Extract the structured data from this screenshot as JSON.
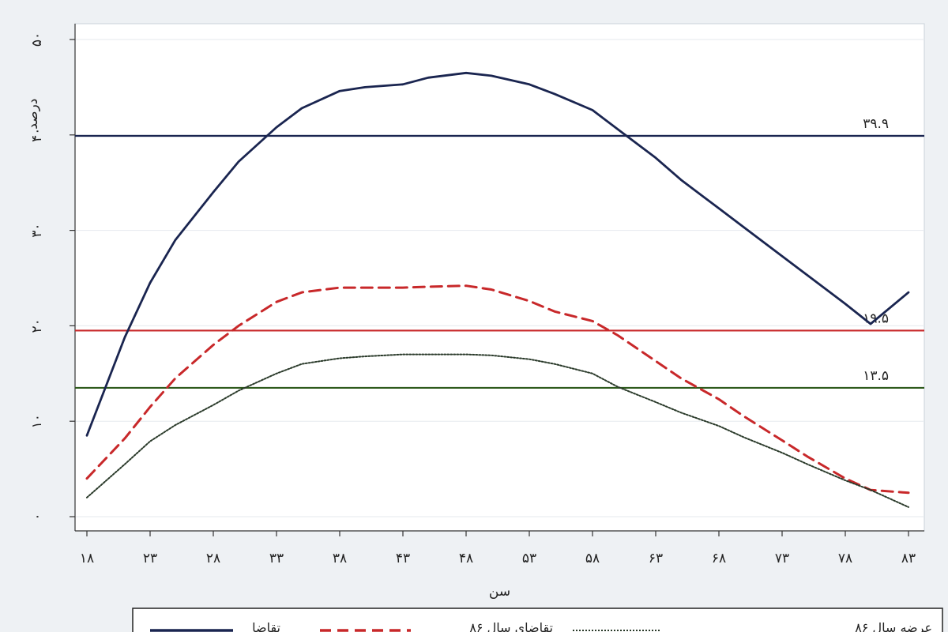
{
  "chart_data": {
    "type": "line",
    "xlabel": "سن",
    "ylabel": "درصد",
    "xlim": [
      18,
      83
    ],
    "ylim": [
      0,
      50
    ],
    "x_ticks": [
      {
        "value": 18,
        "label": "۱۸"
      },
      {
        "value": 23,
        "label": "۲۳"
      },
      {
        "value": 28,
        "label": "۲۸"
      },
      {
        "value": 33,
        "label": "۳۳"
      },
      {
        "value": 38,
        "label": "۳۸"
      },
      {
        "value": 43,
        "label": "۴۳"
      },
      {
        "value": 48,
        "label": "۴۸"
      },
      {
        "value": 53,
        "label": "۵۳"
      },
      {
        "value": 58,
        "label": "۵۸"
      },
      {
        "value": 63,
        "label": "۶۳"
      },
      {
        "value": 68,
        "label": "۶۸"
      },
      {
        "value": 73,
        "label": "۷۳"
      },
      {
        "value": 78,
        "label": "۷۸"
      },
      {
        "value": 83,
        "label": "۸۳"
      }
    ],
    "y_ticks": [
      {
        "value": 0,
        "label": "۰"
      },
      {
        "value": 10,
        "label": "۱۰"
      },
      {
        "value": 20,
        "label": "۲۰"
      },
      {
        "value": 30,
        "label": "۳۰"
      },
      {
        "value": 40,
        "label": "۴۰"
      },
      {
        "value": 50,
        "label": "۵۰"
      }
    ],
    "grid": true,
    "legend_position": "bottom",
    "x": [
      18,
      21,
      23,
      25,
      28,
      30,
      33,
      35,
      38,
      40,
      43,
      45,
      48,
      50,
      53,
      55,
      58,
      60,
      63,
      65,
      68,
      70,
      73,
      75,
      78,
      80,
      83
    ],
    "series": [
      {
        "name": "تقاضا",
        "style": "solid",
        "color": "#1a2550",
        "values": [
          8.5,
          18.8,
          24.5,
          29.0,
          34.0,
          37.2,
          40.8,
          42.8,
          44.6,
          45.0,
          45.3,
          46.0,
          46.5,
          46.2,
          45.3,
          44.3,
          42.6,
          40.6,
          37.6,
          35.3,
          32.3,
          30.3,
          27.3,
          25.3,
          22.3,
          20.2,
          23.5
        ]
      },
      {
        "name": "تقاضای سال ۸۶",
        "style": "dashed",
        "color": "#c8282a",
        "values": [
          4.0,
          8.2,
          11.5,
          14.5,
          18.0,
          20.0,
          22.5,
          23.5,
          24.0,
          24.0,
          24.0,
          24.1,
          24.2,
          23.8,
          22.6,
          21.5,
          20.5,
          19.0,
          16.3,
          14.5,
          12.3,
          10.5,
          8.0,
          6.3,
          4.0,
          2.8,
          2.5
        ]
      },
      {
        "name": "عرضه سال ۸۶",
        "style": "dotted",
        "color": "#2a3a2a",
        "values": [
          2.0,
          5.5,
          7.9,
          9.6,
          11.7,
          13.2,
          15.0,
          16.0,
          16.6,
          16.8,
          17.0,
          17.0,
          17.0,
          16.9,
          16.5,
          16.0,
          15.0,
          13.6,
          12.0,
          10.9,
          9.5,
          8.3,
          6.7,
          5.5,
          3.8,
          2.8,
          1.0
        ]
      }
    ],
    "reference_lines": [
      {
        "value": 39.9,
        "label": "۳۹.۹",
        "color": "#1a2550"
      },
      {
        "value": 19.5,
        "label": "۱۹.۵",
        "color": "#c8282a"
      },
      {
        "value": 13.5,
        "label": "۱۳.۵",
        "color": "#2e5a1c"
      }
    ]
  }
}
